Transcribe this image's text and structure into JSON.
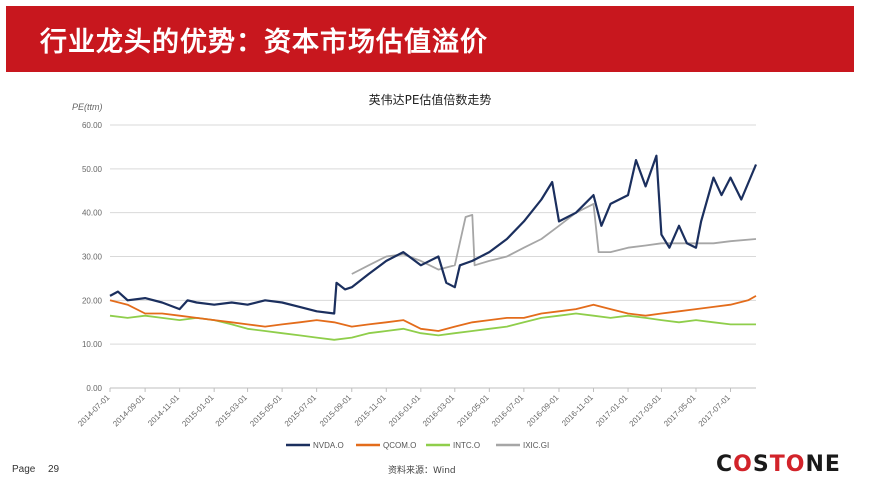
{
  "header": {
    "title": "行业龙头的优势：资本市场估值溢价"
  },
  "footer": {
    "page_label": "Page",
    "page_number": "29",
    "source": "资料来源：Wind",
    "logo_text": "COSTONE",
    "logo_parts": [
      "C",
      "O",
      "S",
      "T",
      "O",
      "NE"
    ]
  },
  "colors": {
    "banner": "#c8171e",
    "nvda": "#1b2f5e",
    "qcom": "#e36c1b",
    "intc": "#8fce4b",
    "ixic": "#a6a6a6",
    "grid": "#d9d9d9"
  },
  "chart_data": {
    "type": "line",
    "title": "英伟达PE估值倍数走势",
    "ylabel": "PE(ttm)",
    "ylim": [
      0,
      60
    ],
    "yticks": [
      "0.00",
      "10.00",
      "20.00",
      "30.00",
      "40.00",
      "50.00",
      "60.00"
    ],
    "x_start": "2014-07-01",
    "x_end": "2017-08-15",
    "xticks": [
      "2014-07-01",
      "2014-09-01",
      "2014-11-01",
      "2015-01-01",
      "2015-03-01",
      "2015-05-01",
      "2015-07-01",
      "2015-09-01",
      "2015-11-01",
      "2016-01-01",
      "2016-03-01",
      "2016-05-01",
      "2016-07-01",
      "2016-09-01",
      "2016-11-01",
      "2017-01-01",
      "2017-03-01",
      "2017-05-01",
      "2017-07-01"
    ],
    "legend_position": "bottom",
    "grid": true,
    "series": [
      {
        "name": "NVDA.O",
        "points": [
          [
            "2014-07-01",
            21
          ],
          [
            "2014-07-15",
            22
          ],
          [
            "2014-08-01",
            20
          ],
          [
            "2014-09-01",
            20.5
          ],
          [
            "2014-10-01",
            19.5
          ],
          [
            "2014-11-01",
            18
          ],
          [
            "2014-11-15",
            20
          ],
          [
            "2014-12-01",
            19.5
          ],
          [
            "2015-01-01",
            19
          ],
          [
            "2015-02-01",
            19.5
          ],
          [
            "2015-03-01",
            19
          ],
          [
            "2015-04-01",
            20
          ],
          [
            "2015-05-01",
            19.5
          ],
          [
            "2015-06-01",
            18.5
          ],
          [
            "2015-07-01",
            17.5
          ],
          [
            "2015-08-01",
            17
          ],
          [
            "2015-08-05",
            24
          ],
          [
            "2015-08-20",
            22.5
          ],
          [
            "2015-09-01",
            23
          ],
          [
            "2015-10-01",
            26
          ],
          [
            "2015-11-01",
            29
          ],
          [
            "2015-12-01",
            31
          ],
          [
            "2016-01-01",
            28
          ],
          [
            "2016-02-01",
            30
          ],
          [
            "2016-02-15",
            24
          ],
          [
            "2016-03-01",
            23
          ],
          [
            "2016-03-10",
            28
          ],
          [
            "2016-04-01",
            29
          ],
          [
            "2016-05-01",
            31
          ],
          [
            "2016-06-01",
            34
          ],
          [
            "2016-07-01",
            38
          ],
          [
            "2016-08-01",
            43
          ],
          [
            "2016-08-20",
            47
          ],
          [
            "2016-09-01",
            38
          ],
          [
            "2016-10-01",
            40
          ],
          [
            "2016-11-01",
            44
          ],
          [
            "2016-11-15",
            37
          ],
          [
            "2016-12-01",
            42
          ],
          [
            "2017-01-01",
            44
          ],
          [
            "2017-01-15",
            52
          ],
          [
            "2017-02-01",
            46
          ],
          [
            "2017-02-20",
            53
          ],
          [
            "2017-03-01",
            35
          ],
          [
            "2017-03-15",
            32
          ],
          [
            "2017-04-01",
            37
          ],
          [
            "2017-04-15",
            33
          ],
          [
            "2017-05-01",
            32
          ],
          [
            "2017-05-10",
            38
          ],
          [
            "2017-06-01",
            48
          ],
          [
            "2017-06-15",
            44
          ],
          [
            "2017-07-01",
            48
          ],
          [
            "2017-07-20",
            43
          ],
          [
            "2017-08-15",
            51
          ]
        ]
      },
      {
        "name": "QCOM.O",
        "points": [
          [
            "2014-07-01",
            20
          ],
          [
            "2014-08-01",
            19
          ],
          [
            "2014-09-01",
            17
          ],
          [
            "2014-10-01",
            17
          ],
          [
            "2014-11-01",
            16.5
          ],
          [
            "2014-12-01",
            16
          ],
          [
            "2015-01-01",
            15.5
          ],
          [
            "2015-02-01",
            15
          ],
          [
            "2015-03-01",
            14.5
          ],
          [
            "2015-04-01",
            14
          ],
          [
            "2015-05-01",
            14.5
          ],
          [
            "2015-06-01",
            15
          ],
          [
            "2015-07-01",
            15.5
          ],
          [
            "2015-08-01",
            15
          ],
          [
            "2015-09-01",
            14
          ],
          [
            "2015-10-01",
            14.5
          ],
          [
            "2015-11-01",
            15
          ],
          [
            "2015-12-01",
            15.5
          ],
          [
            "2016-01-01",
            13.5
          ],
          [
            "2016-02-01",
            13
          ],
          [
            "2016-03-01",
            14
          ],
          [
            "2016-04-01",
            15
          ],
          [
            "2016-05-01",
            15.5
          ],
          [
            "2016-06-01",
            16
          ],
          [
            "2016-07-01",
            16
          ],
          [
            "2016-08-01",
            17
          ],
          [
            "2016-09-01",
            17.5
          ],
          [
            "2016-10-01",
            18
          ],
          [
            "2016-11-01",
            19
          ],
          [
            "2016-12-01",
            18
          ],
          [
            "2017-01-01",
            17
          ],
          [
            "2017-02-01",
            16.5
          ],
          [
            "2017-03-01",
            17
          ],
          [
            "2017-04-01",
            17.5
          ],
          [
            "2017-05-01",
            18
          ],
          [
            "2017-06-01",
            18.5
          ],
          [
            "2017-07-01",
            19
          ],
          [
            "2017-08-01",
            20
          ],
          [
            "2017-08-15",
            21
          ]
        ]
      },
      {
        "name": "INTC.O",
        "points": [
          [
            "2014-07-01",
            16.5
          ],
          [
            "2014-08-01",
            16
          ],
          [
            "2014-09-01",
            16.5
          ],
          [
            "2014-10-01",
            16
          ],
          [
            "2014-11-01",
            15.5
          ],
          [
            "2014-12-01",
            16
          ],
          [
            "2015-01-01",
            15.5
          ],
          [
            "2015-02-01",
            14.5
          ],
          [
            "2015-03-01",
            13.5
          ],
          [
            "2015-04-01",
            13
          ],
          [
            "2015-05-01",
            12.5
          ],
          [
            "2015-06-01",
            12
          ],
          [
            "2015-07-01",
            11.5
          ],
          [
            "2015-08-01",
            11
          ],
          [
            "2015-09-01",
            11.5
          ],
          [
            "2015-10-01",
            12.5
          ],
          [
            "2015-11-01",
            13
          ],
          [
            "2015-12-01",
            13.5
          ],
          [
            "2016-01-01",
            12.5
          ],
          [
            "2016-02-01",
            12
          ],
          [
            "2016-03-01",
            12.5
          ],
          [
            "2016-04-01",
            13
          ],
          [
            "2016-05-01",
            13.5
          ],
          [
            "2016-06-01",
            14
          ],
          [
            "2016-07-01",
            15
          ],
          [
            "2016-08-01",
            16
          ],
          [
            "2016-09-01",
            16.5
          ],
          [
            "2016-10-01",
            17
          ],
          [
            "2016-11-01",
            16.5
          ],
          [
            "2016-12-01",
            16
          ],
          [
            "2017-01-01",
            16.5
          ],
          [
            "2017-02-01",
            16
          ],
          [
            "2017-03-01",
            15.5
          ],
          [
            "2017-04-01",
            15
          ],
          [
            "2017-05-01",
            15.5
          ],
          [
            "2017-06-01",
            15
          ],
          [
            "2017-07-01",
            14.5
          ],
          [
            "2017-08-15",
            14.5
          ]
        ]
      },
      {
        "name": "IXIC.GI",
        "points": [
          [
            "2015-09-01",
            26
          ],
          [
            "2015-10-01",
            28
          ],
          [
            "2015-11-01",
            30
          ],
          [
            "2015-12-01",
            30.5
          ],
          [
            "2016-01-01",
            29
          ],
          [
            "2016-02-01",
            27
          ],
          [
            "2016-03-01",
            28
          ],
          [
            "2016-03-20",
            39
          ],
          [
            "2016-04-01",
            39.5
          ],
          [
            "2016-04-05",
            28
          ],
          [
            "2016-05-01",
            29
          ],
          [
            "2016-06-01",
            30
          ],
          [
            "2016-07-01",
            32
          ],
          [
            "2016-08-01",
            34
          ],
          [
            "2016-09-01",
            37
          ],
          [
            "2016-10-01",
            40
          ],
          [
            "2016-11-01",
            42
          ],
          [
            "2016-11-10",
            31
          ],
          [
            "2016-12-01",
            31
          ],
          [
            "2017-01-01",
            32
          ],
          [
            "2017-02-01",
            32.5
          ],
          [
            "2017-03-01",
            33
          ],
          [
            "2017-04-01",
            33
          ],
          [
            "2017-05-01",
            33
          ],
          [
            "2017-06-01",
            33
          ],
          [
            "2017-07-01",
            33.5
          ],
          [
            "2017-08-15",
            34
          ]
        ]
      }
    ]
  }
}
